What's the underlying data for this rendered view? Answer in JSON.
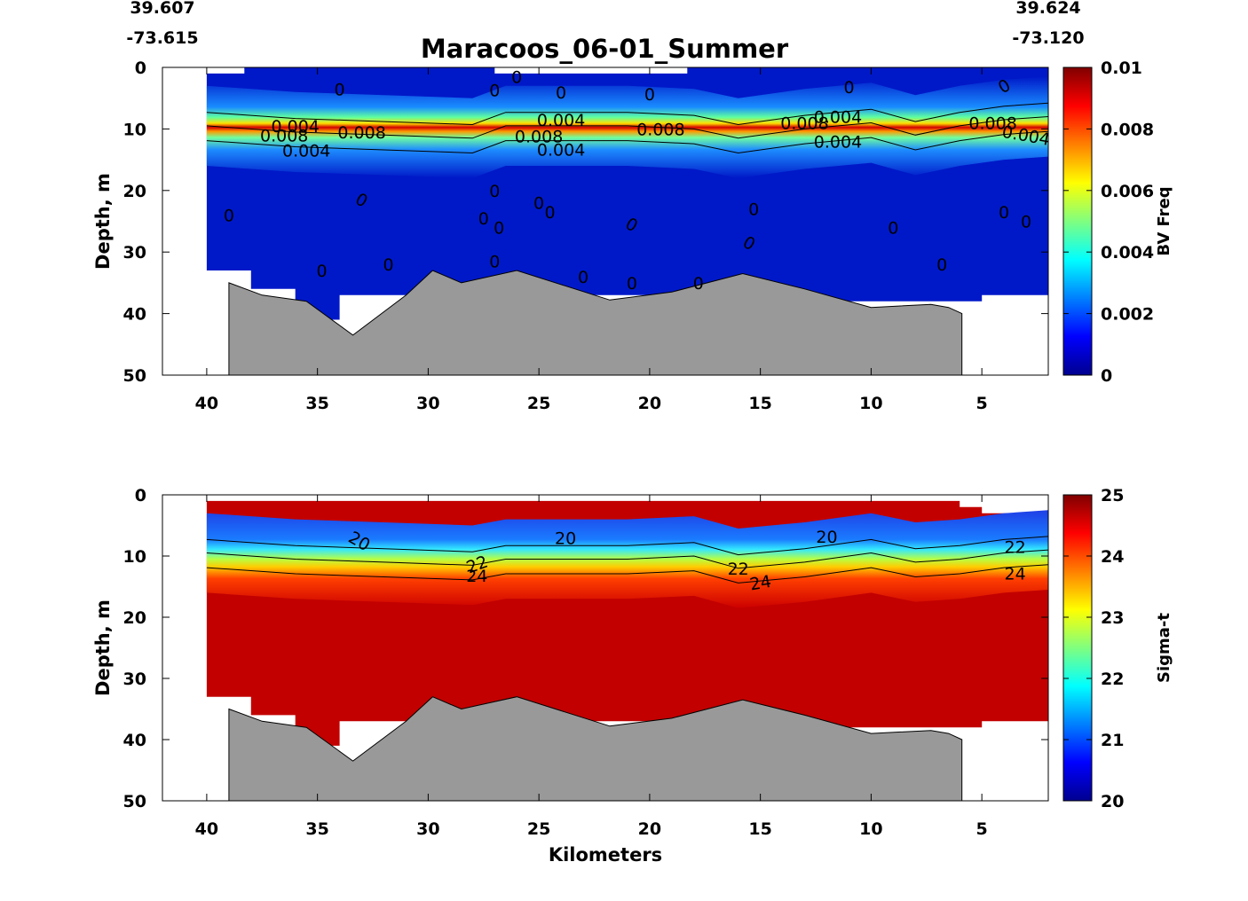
{
  "chart_data": [
    {
      "type": "heatmap",
      "title": "Maracoos_06-01_Summer",
      "coords": {
        "start_lat": "39.607",
        "start_lon": "-73.615",
        "end_lat": "39.624",
        "end_lon": "-73.120"
      },
      "ylabel": "Depth, m",
      "xlabel": "",
      "xlim": [
        42,
        2
      ],
      "ylim": [
        50,
        0
      ],
      "x_ticks": [
        40,
        35,
        30,
        25,
        20,
        15,
        10,
        5
      ],
      "y_ticks": [
        0,
        10,
        20,
        30,
        40,
        50
      ],
      "colorbar": {
        "label": "BV Freq",
        "range": [
          0,
          0.01
        ],
        "ticks": [
          "0",
          "0.002",
          "0.004",
          "0.006",
          "0.008",
          "0.01"
        ]
      },
      "bottom_profile": [
        [
          39,
          35
        ],
        [
          37.5,
          37
        ],
        [
          36.5,
          37.5
        ],
        [
          35.5,
          38
        ],
        [
          33.4,
          43.5
        ],
        [
          31,
          37
        ],
        [
          29.8,
          33
        ],
        [
          28.5,
          35
        ],
        [
          26,
          33
        ],
        [
          21.8,
          37.8
        ],
        [
          19,
          36.5
        ],
        [
          15.8,
          33.5
        ],
        [
          13,
          36
        ],
        [
          10,
          39
        ],
        [
          7.3,
          38.5
        ],
        [
          6.5,
          39
        ],
        [
          5.9,
          40
        ]
      ],
      "data_top": [
        [
          40,
          1
        ],
        [
          38.3,
          1
        ],
        [
          38.3,
          0
        ],
        [
          27,
          0
        ],
        [
          27,
          1
        ],
        [
          18.3,
          1
        ],
        [
          18.3,
          0
        ],
        [
          2,
          0
        ],
        [
          2,
          4
        ]
      ],
      "data_bottom": [
        [
          2,
          37
        ],
        [
          5,
          37
        ],
        [
          5,
          38
        ],
        [
          14.5,
          38
        ],
        [
          14.5,
          37
        ],
        [
          34,
          37
        ],
        [
          34,
          41
        ],
        [
          36,
          41
        ],
        [
          36,
          36
        ],
        [
          38,
          36
        ],
        [
          38,
          33
        ],
        [
          40,
          33
        ]
      ],
      "layer_depth": [
        [
          40,
          9.5
        ],
        [
          36,
          10.5
        ],
        [
          32,
          11
        ],
        [
          28,
          11.5
        ],
        [
          26.5,
          9.5
        ],
        [
          24,
          9.5
        ],
        [
          21,
          9.5
        ],
        [
          18,
          10
        ],
        [
          16,
          11.5
        ],
        [
          13,
          10
        ],
        [
          10,
          9
        ],
        [
          8,
          11
        ],
        [
          6,
          9.5
        ],
        [
          4,
          8.5
        ],
        [
          2,
          8
        ]
      ],
      "contour_labels": [
        {
          "text": "0",
          "x": 26,
          "y": 1.5,
          "angle": 0
        },
        {
          "text": "0",
          "x": 34,
          "y": 3.5,
          "angle": 0
        },
        {
          "text": "0",
          "x": 27,
          "y": 3.7,
          "angle": 0
        },
        {
          "text": "0",
          "x": 24,
          "y": 4,
          "angle": 0
        },
        {
          "text": "0",
          "x": 20,
          "y": 4.3,
          "angle": 0
        },
        {
          "text": "0",
          "x": 11,
          "y": 3.2,
          "angle": 0
        },
        {
          "text": "0",
          "x": 4,
          "y": 3,
          "angle": -30
        },
        {
          "text": "0.004",
          "x": 36,
          "y": 9.5,
          "angle": 0
        },
        {
          "text": "0.008",
          "x": 36.5,
          "y": 11,
          "angle": 0
        },
        {
          "text": "0.008",
          "x": 33,
          "y": 10.5,
          "angle": 0
        },
        {
          "text": "0.004",
          "x": 35.5,
          "y": 13.5,
          "angle": 0
        },
        {
          "text": "0.004",
          "x": 24,
          "y": 8.5,
          "angle": 0
        },
        {
          "text": "0.008",
          "x": 25,
          "y": 11.2,
          "angle": 0
        },
        {
          "text": "0.004",
          "x": 24,
          "y": 13.3,
          "angle": 0
        },
        {
          "text": "0.008",
          "x": 19.5,
          "y": 10,
          "angle": 0
        },
        {
          "text": "0.008",
          "x": 13,
          "y": 9,
          "angle": 0
        },
        {
          "text": "0.004",
          "x": 11.5,
          "y": 8,
          "angle": 0
        },
        {
          "text": "0.004",
          "x": 11.5,
          "y": 12,
          "angle": 0
        },
        {
          "text": "0.008",
          "x": 4.5,
          "y": 9,
          "angle": 0
        },
        {
          "text": "0.004",
          "x": 3,
          "y": 11,
          "angle": 10
        },
        {
          "text": "0",
          "x": 27,
          "y": 20,
          "angle": 0
        },
        {
          "text": "0",
          "x": 33,
          "y": 21.5,
          "angle": 30
        },
        {
          "text": "0",
          "x": 25,
          "y": 22,
          "angle": 0
        },
        {
          "text": "0",
          "x": 24.5,
          "y": 23.5,
          "angle": 0
        },
        {
          "text": "0",
          "x": 39,
          "y": 24,
          "angle": 0
        },
        {
          "text": "0",
          "x": 27.5,
          "y": 24.5,
          "angle": 0
        },
        {
          "text": "0",
          "x": 26.8,
          "y": 26,
          "angle": 0
        },
        {
          "text": "0",
          "x": 20.8,
          "y": 25.5,
          "angle": 30
        },
        {
          "text": "0",
          "x": 15.3,
          "y": 23,
          "angle": 0
        },
        {
          "text": "0",
          "x": 15.5,
          "y": 28.5,
          "angle": 30
        },
        {
          "text": "0",
          "x": 9,
          "y": 26,
          "angle": 0
        },
        {
          "text": "0",
          "x": 4,
          "y": 23.5,
          "angle": 0
        },
        {
          "text": "0",
          "x": 3,
          "y": 25,
          "angle": 0
        },
        {
          "text": "0",
          "x": 27,
          "y": 31.5,
          "angle": 0
        },
        {
          "text": "0",
          "x": 31.8,
          "y": 32,
          "angle": 0
        },
        {
          "text": "0",
          "x": 34.8,
          "y": 33,
          "angle": 0
        },
        {
          "text": "0",
          "x": 23,
          "y": 34,
          "angle": 0
        },
        {
          "text": "0",
          "x": 20.8,
          "y": 35,
          "angle": 0
        },
        {
          "text": "0",
          "x": 17.8,
          "y": 35,
          "angle": 0
        },
        {
          "text": "0",
          "x": 6.8,
          "y": 32,
          "angle": 0
        }
      ]
    },
    {
      "type": "heatmap",
      "title": "",
      "ylabel": "Depth, m",
      "xlabel": "Kilometers",
      "xlim": [
        42,
        2
      ],
      "ylim": [
        50,
        0
      ],
      "x_ticks": [
        40,
        35,
        30,
        25,
        20,
        15,
        10,
        5
      ],
      "y_ticks": [
        0,
        10,
        20,
        30,
        40,
        50
      ],
      "colorbar": {
        "label": "Sigma-t",
        "range": [
          20,
          25
        ],
        "ticks": [
          "20",
          "21",
          "22",
          "23",
          "24",
          "25"
        ]
      },
      "bottom_profile": [
        [
          39,
          35
        ],
        [
          37.5,
          37
        ],
        [
          36.5,
          37.5
        ],
        [
          35.5,
          38
        ],
        [
          33.4,
          43.5
        ],
        [
          31,
          37
        ],
        [
          29.8,
          33
        ],
        [
          28.5,
          35
        ],
        [
          26,
          33
        ],
        [
          21.8,
          37.8
        ],
        [
          19,
          36.5
        ],
        [
          15.8,
          33.5
        ],
        [
          13,
          36
        ],
        [
          10,
          39
        ],
        [
          7.3,
          38.5
        ],
        [
          6.5,
          39
        ],
        [
          5.9,
          40
        ]
      ],
      "data_top": [
        [
          40,
          1
        ],
        [
          6,
          1
        ],
        [
          6,
          2
        ],
        [
          5,
          2
        ],
        [
          5,
          3
        ],
        [
          2,
          3
        ]
      ],
      "data_bottom": [
        [
          2,
          37
        ],
        [
          5,
          37
        ],
        [
          5,
          38
        ],
        [
          14.5,
          38
        ],
        [
          14.5,
          37
        ],
        [
          34,
          37
        ],
        [
          34,
          41
        ],
        [
          36,
          41
        ],
        [
          36,
          36
        ],
        [
          38,
          36
        ],
        [
          38,
          33
        ],
        [
          40,
          33
        ]
      ],
      "layer_depth": [
        [
          40,
          9.5
        ],
        [
          36,
          10.5
        ],
        [
          32,
          11
        ],
        [
          28,
          11.5
        ],
        [
          26.5,
          10.5
        ],
        [
          24,
          10.5
        ],
        [
          21,
          10.5
        ],
        [
          18,
          10
        ],
        [
          16,
          12
        ],
        [
          13,
          11
        ],
        [
          10,
          9.5
        ],
        [
          8,
          11
        ],
        [
          6,
          10.5
        ],
        [
          4,
          9.5
        ],
        [
          2,
          9
        ]
      ],
      "contour_labels": [
        {
          "text": "20",
          "x": 33.1,
          "y": 7.5,
          "angle": 30
        },
        {
          "text": "20",
          "x": 23.8,
          "y": 7,
          "angle": 0
        },
        {
          "text": "20",
          "x": 12,
          "y": 6.8,
          "angle": 0
        },
        {
          "text": "22",
          "x": 27.8,
          "y": 11.3,
          "angle": -20
        },
        {
          "text": "22",
          "x": 16,
          "y": 12,
          "angle": 0
        },
        {
          "text": "22",
          "x": 3.5,
          "y": 8.5,
          "angle": 0
        },
        {
          "text": "24",
          "x": 27.8,
          "y": 13.2,
          "angle": 0
        },
        {
          "text": "24",
          "x": 15,
          "y": 14.3,
          "angle": -10
        },
        {
          "text": "24",
          "x": 3.5,
          "y": 12.8,
          "angle": 0
        }
      ]
    }
  ]
}
